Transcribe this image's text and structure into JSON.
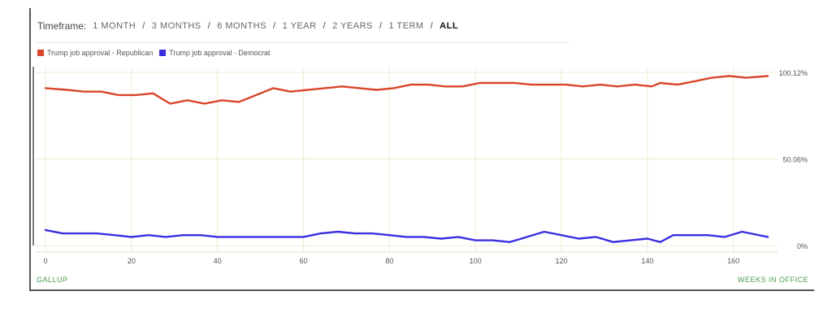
{
  "timeframe": {
    "label": "Timeframe:",
    "options": [
      "1 MONTH",
      "3 MONTHS",
      "6 MONTHS",
      "1 YEAR",
      "2 YEARS",
      "1 TERM",
      "ALL"
    ],
    "selected": "ALL"
  },
  "source": "GALLUP",
  "colors": {
    "republican": "#d9452b",
    "democrat": "#3a2ee0",
    "grid": "#ecefd8",
    "axis": "#555555"
  },
  "chart_data": {
    "type": "line",
    "xlabel": "WEEKS IN OFFICE",
    "ylabel": "",
    "xlim": [
      0,
      168
    ],
    "ylim": [
      0,
      100.12
    ],
    "x_ticks": [
      0,
      20,
      40,
      60,
      80,
      100,
      120,
      140,
      160
    ],
    "y_ticks": [
      {
        "value": 100.12,
        "label": "100.12%"
      },
      {
        "value": 50.06,
        "label": "50.06%"
      },
      {
        "value": 0,
        "label": "0%"
      }
    ],
    "grid": true,
    "legend": "top-left",
    "series": [
      {
        "name": "Trump job approval - Republican",
        "color": "#d9452b",
        "x": [
          0,
          5,
          9,
          13,
          17,
          21,
          25,
          29,
          33,
          37,
          41,
          45,
          49,
          53,
          57,
          61,
          65,
          69,
          73,
          77,
          81,
          85,
          89,
          93,
          97,
          101,
          105,
          109,
          113,
          117,
          121,
          125,
          129,
          133,
          137,
          141,
          143,
          147,
          151,
          155,
          159,
          163,
          168
        ],
        "y": [
          91,
          90,
          89,
          89,
          87,
          87,
          88,
          82,
          84,
          82,
          84,
          83,
          87,
          91,
          89,
          90,
          91,
          92,
          91,
          90,
          91,
          93,
          93,
          92,
          92,
          94,
          94,
          94,
          93,
          93,
          93,
          92,
          93,
          92,
          93,
          92,
          94,
          93,
          95,
          97,
          98,
          97,
          98
        ]
      },
      {
        "name": "Trump job approval - Democrat",
        "color": "#3a2ee0",
        "x": [
          0,
          4,
          8,
          12,
          16,
          20,
          24,
          28,
          32,
          36,
          40,
          44,
          48,
          52,
          56,
          60,
          64,
          68,
          72,
          76,
          80,
          84,
          88,
          92,
          96,
          100,
          104,
          108,
          112,
          116,
          120,
          124,
          128,
          132,
          136,
          140,
          143,
          146,
          150,
          154,
          158,
          162,
          168
        ],
        "y": [
          9,
          7,
          7,
          7,
          6,
          5,
          6,
          5,
          6,
          6,
          5,
          5,
          5,
          5,
          5,
          5,
          7,
          8,
          7,
          7,
          6,
          5,
          5,
          4,
          5,
          3,
          3,
          2,
          5,
          8,
          6,
          4,
          5,
          2,
          3,
          4,
          2,
          6,
          6,
          6,
          5,
          8,
          5
        ]
      }
    ]
  }
}
